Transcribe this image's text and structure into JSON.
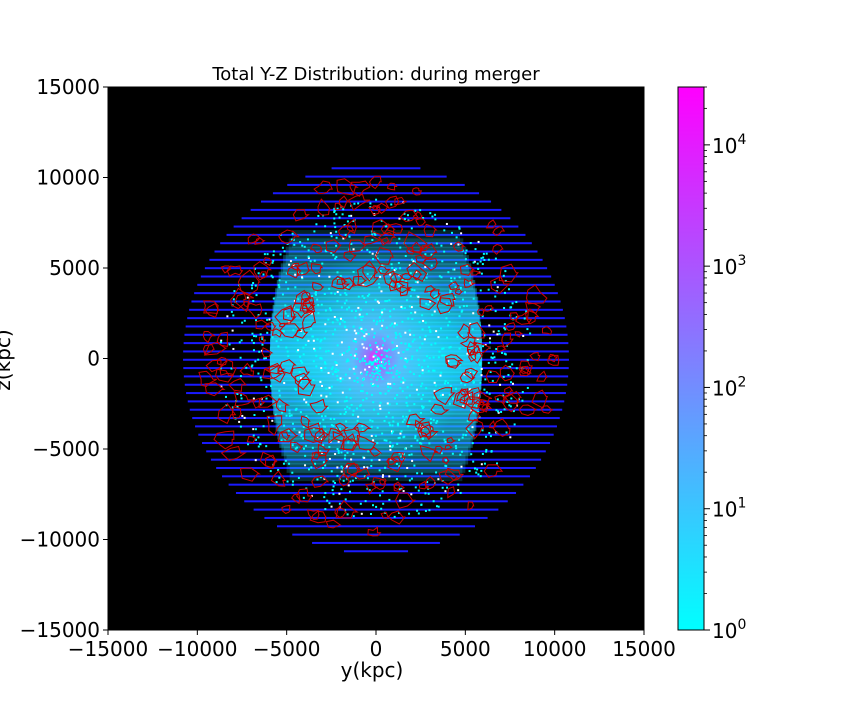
{
  "chart_data": {
    "type": "heatmap",
    "title": "Total Y-Z Distribution: during merger",
    "xlabel": "y(kpc)",
    "ylabel": "z(kpc)",
    "xlim": [
      -15000,
      15000
    ],
    "ylim": [
      -15000,
      15000
    ],
    "xticks": [
      -15000,
      -10000,
      -5000,
      0,
      5000,
      10000,
      15000
    ],
    "yticks": [
      -15000,
      -10000,
      -5000,
      0,
      5000,
      10000,
      15000
    ],
    "xtick_labels": [
      "−15000",
      "−10000",
      "−5000",
      "0",
      "5000",
      "10000",
      "15000"
    ],
    "ytick_labels": [
      "−15000",
      "−10000",
      "−5000",
      "0",
      "5000",
      "10000",
      "15000"
    ],
    "background_color": "#000000",
    "distribution_radius": 10800,
    "center": [
      0,
      0
    ],
    "peak_count": 30000,
    "contour_color": "#cc0000",
    "contour_region": [
      4000,
      10000
    ],
    "grid": false,
    "colorbar": {
      "scale": "log",
      "range": [
        1,
        30000
      ],
      "ticks": [
        1,
        10,
        100,
        1000,
        10000
      ],
      "tick_base": "10",
      "tick_exponents": [
        "0",
        "1",
        "2",
        "3",
        "4"
      ],
      "colormap": "cool",
      "color_low": "#00ffff",
      "color_high": "#ff00ff"
    }
  }
}
